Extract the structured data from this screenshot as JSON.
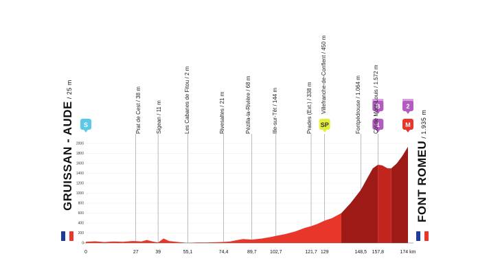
{
  "profile": {
    "start": {
      "name": "GRUISSAN - AUDE",
      "alt": "25 m"
    },
    "finish": {
      "name": "FONT ROMEU",
      "alt": "1.935 m"
    },
    "y_ticks": [
      "2000",
      "1800",
      "1600",
      "1400",
      "1200",
      "1000",
      "800",
      "600",
      "400",
      "200",
      "0"
    ],
    "x_unit": "km",
    "waypoints": [
      {
        "km": 0,
        "label": "0"
      },
      {
        "km": 27,
        "label": "27"
      },
      {
        "km": 39,
        "label": "39"
      },
      {
        "km": 55.1,
        "label": "55,1"
      },
      {
        "km": 74.4,
        "label": "74,4"
      },
      {
        "km": 89.7,
        "label": "89,7"
      },
      {
        "km": 102.7,
        "label": "102,7"
      },
      {
        "km": 121.7,
        "label": "121,7"
      },
      {
        "km": 129,
        "label": "129"
      },
      {
        "km": 148.5,
        "label": "148,5"
      },
      {
        "km": 157.8,
        "label": "157,8"
      },
      {
        "km": 174,
        "label": "174 km"
      }
    ],
    "places": [
      {
        "text": "Prat de Cest / 38 m"
      },
      {
        "text": "Sigean / 11 m"
      },
      {
        "text": "Les Cabanes de Fitou / 2 m"
      },
      {
        "text": "Rivesaltes / 21 m"
      },
      {
        "text": "Pézilla-la-Rivière / 68 m"
      },
      {
        "text": "Ille-sur-Têt / 144 m"
      },
      {
        "text": "Prades (Ext.) / 338 m"
      },
      {
        "text": "Villefranche-de-Conflent / 450 m"
      },
      {
        "text": "Fontpédrouse / 1.064 m"
      },
      {
        "text": "Col de Mont-Louis / 1.572 m"
      }
    ],
    "badges": {
      "start": "S",
      "sprint": "SP",
      "bonus": "B",
      "col_cat": "1",
      "finish_cat": "2",
      "finish": "M"
    },
    "colors": {
      "profile_light": "#e8362a",
      "profile_dark": "#9e1a16",
      "profile_mid": "#c2241e",
      "sprint": "#e4ef3a",
      "start": "#5bc8e8",
      "climb": "#b35cc0",
      "finish": "#e8362a"
    }
  },
  "chart_data": {
    "type": "area",
    "title": "",
    "xlabel": "",
    "ylabel": "",
    "ylim": [
      0,
      2000
    ],
    "xlim": [
      0,
      174
    ],
    "x": [
      0,
      5,
      10,
      15,
      20,
      25,
      27,
      30,
      33,
      36,
      39,
      42,
      45,
      50,
      55.1,
      60,
      65,
      70,
      74.4,
      78,
      82,
      85,
      89.7,
      95,
      100,
      102.7,
      108,
      113,
      118,
      121.7,
      125,
      129,
      133,
      138,
      143,
      148.5,
      152,
      155,
      157.8,
      160,
      163,
      165,
      168,
      171,
      174
    ],
    "y": [
      25,
      35,
      20,
      30,
      25,
      40,
      38,
      30,
      60,
      30,
      11,
      90,
      40,
      20,
      2,
      10,
      10,
      15,
      21,
      30,
      60,
      80,
      68,
      90,
      120,
      144,
      180,
      230,
      300,
      338,
      380,
      450,
      500,
      600,
      800,
      1064,
      1300,
      1500,
      1572,
      1560,
      1500,
      1500,
      1600,
      1750,
      1935
    ]
  }
}
